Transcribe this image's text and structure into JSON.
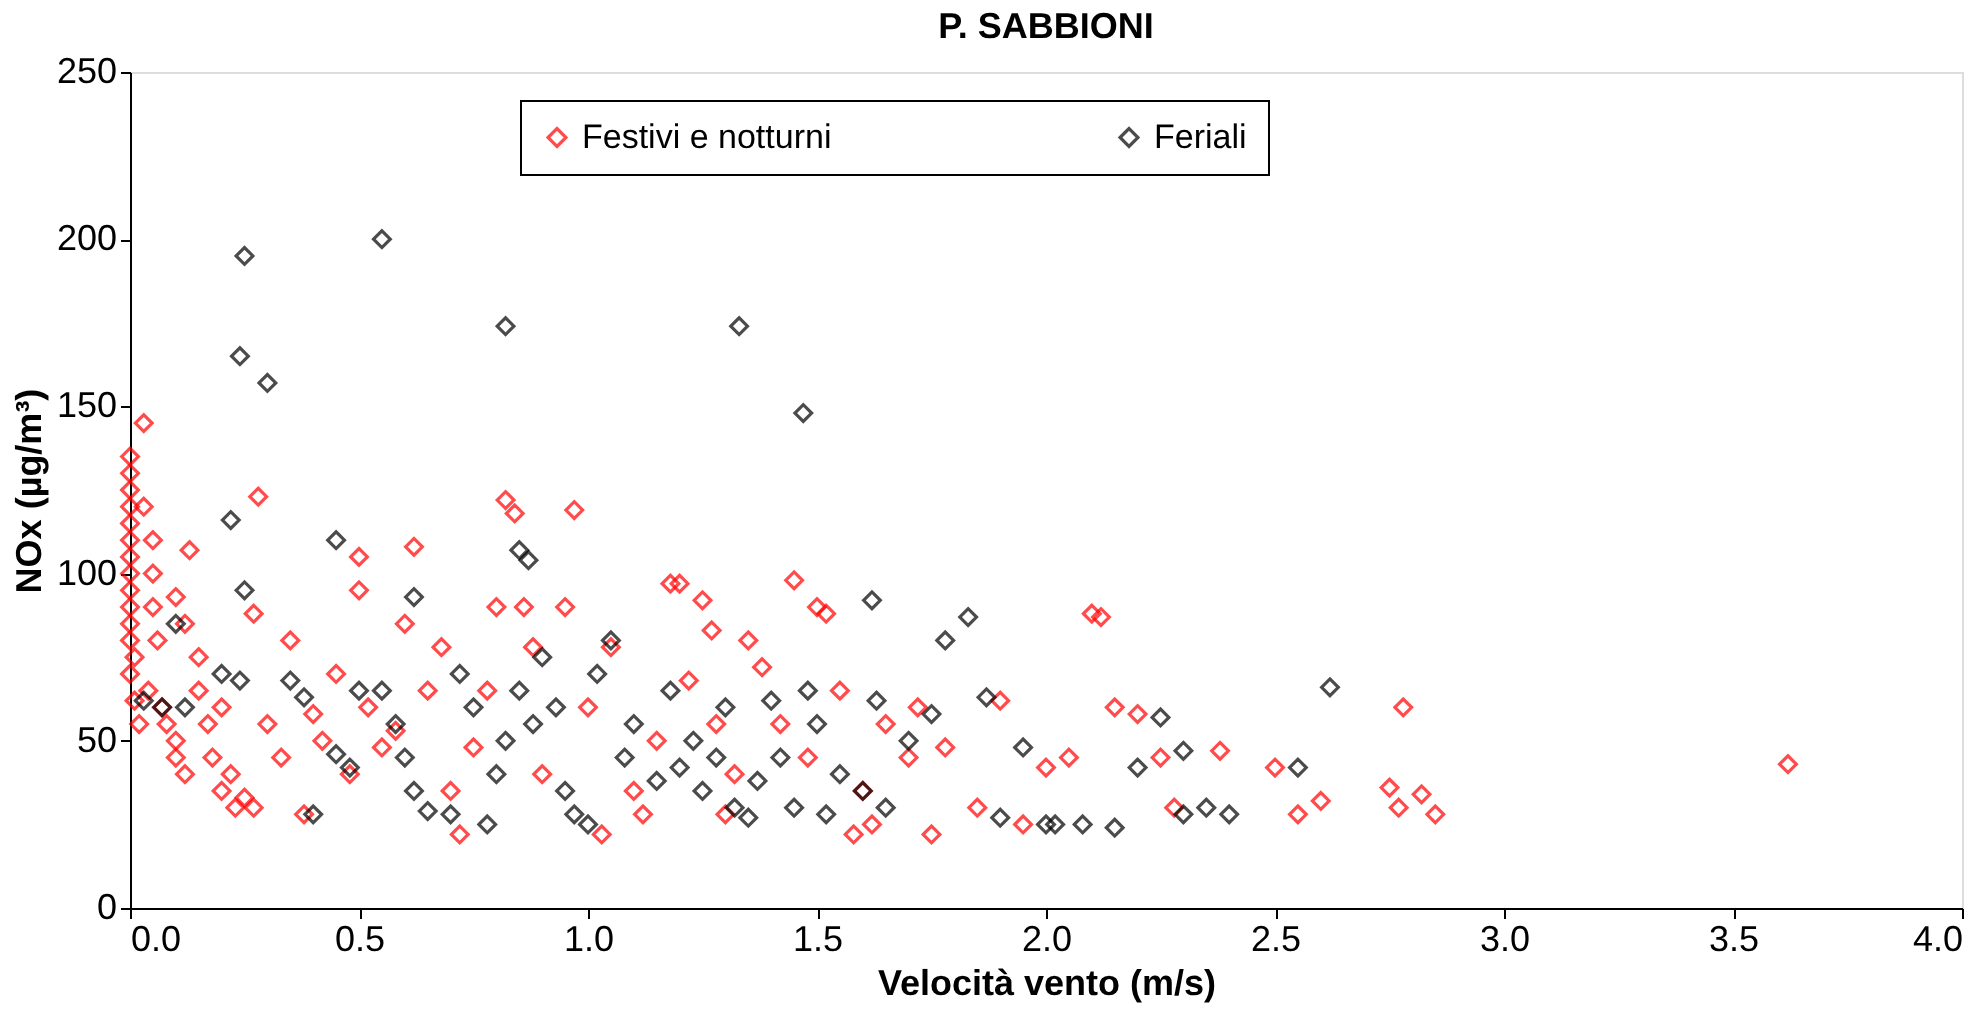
{
  "chart_data": {
    "type": "scatter",
    "title": "P. SABBIONI",
    "xlabel": "Velocità vento (m/s)",
    "ylabel": "NOx (µg/m³)",
    "xlim": [
      0,
      4
    ],
    "xticks": [
      {
        "value": 0,
        "label": "0.0"
      },
      {
        "value": 0.5,
        "label": "0.5"
      },
      {
        "value": 1,
        "label": "1.0"
      },
      {
        "value": 1.5,
        "label": "1.5"
      },
      {
        "value": 2,
        "label": "2.0"
      },
      {
        "value": 2.5,
        "label": "2.5"
      },
      {
        "value": 3,
        "label": "3.0"
      },
      {
        "value": 3.5,
        "label": "3.5"
      },
      {
        "value": 4,
        "label": "4.0"
      }
    ],
    "ylim": [
      0,
      250
    ],
    "yticks": [
      0,
      50,
      100,
      150,
      200,
      250
    ],
    "grid": false,
    "legend": "top",
    "marker": "diamond",
    "series": [
      {
        "name": "Festivi e notturni",
        "color": "#ff0000",
        "x": [
          0,
          0,
          0,
          0,
          0,
          0,
          0,
          0,
          0,
          0,
          0,
          0,
          0.01,
          0,
          0.01,
          0.02,
          0.03,
          0.03,
          0.05,
          0.05,
          0.05,
          0.06,
          0.04,
          0.07,
          0.08,
          0.1,
          0.1,
          0.12,
          0.1,
          0.12,
          0.13,
          0.15,
          0.15,
          0.17,
          0.18,
          0.2,
          0.2,
          0.22,
          0.23,
          0.25,
          0.27,
          0.28,
          0.27,
          0.3,
          0.33,
          0.35,
          0.38,
          0.4,
          0.42,
          0.45,
          0.48,
          0.5,
          0.5,
          0.52,
          0.55,
          0.58,
          0.6,
          0.62,
          0.65,
          0.68,
          0.7,
          0.72,
          0.75,
          0.78,
          0.8,
          0.82,
          0.84,
          0.86,
          0.88,
          0.9,
          0.95,
          0.97,
          1.0,
          1.03,
          1.05,
          1.1,
          1.12,
          1.15,
          1.18,
          1.2,
          1.22,
          1.25,
          1.27,
          1.28,
          1.3,
          1.32,
          1.35,
          1.38,
          1.42,
          1.45,
          1.48,
          1.5,
          1.52,
          1.55,
          1.58,
          1.6,
          1.62,
          1.65,
          1.7,
          1.72,
          1.75,
          1.78,
          1.85,
          1.9,
          1.95,
          2.0,
          2.05,
          2.1,
          2.12,
          2.15,
          2.2,
          2.25,
          2.28,
          2.38,
          2.5,
          2.55,
          2.6,
          2.75,
          2.77,
          2.78,
          2.82,
          2.85,
          3.62
        ],
        "values": [
          135,
          130,
          125,
          120,
          115,
          110,
          105,
          100,
          95,
          90,
          85,
          80,
          75,
          70,
          62,
          55,
          145,
          120,
          110,
          100,
          90,
          80,
          65,
          60,
          55,
          50,
          45,
          40,
          93,
          85,
          107,
          75,
          65,
          55,
          45,
          35,
          60,
          40,
          30,
          33,
          30,
          123,
          88,
          55,
          45,
          80,
          28,
          58,
          50,
          70,
          40,
          105,
          95,
          60,
          48,
          53,
          85,
          108,
          65,
          78,
          35,
          22,
          48,
          65,
          90,
          122,
          118,
          90,
          78,
          40,
          90,
          119,
          60,
          22,
          78,
          35,
          28,
          50,
          97,
          97,
          68,
          92,
          83,
          55,
          28,
          40,
          80,
          72,
          55,
          98,
          45,
          90,
          88,
          65,
          22,
          35,
          25,
          55,
          45,
          60,
          22,
          48,
          30,
          62,
          25,
          42,
          45,
          88,
          87,
          60,
          58,
          45,
          30,
          47,
          42,
          28,
          32,
          36,
          30,
          60,
          34,
          28,
          43
        ]
      },
      {
        "name": "Feriali",
        "color": "#000000",
        "x": [
          0.25,
          0.55,
          0.24,
          0.3,
          0.82,
          1.33,
          1.47,
          0.22,
          0.45,
          0.25,
          0.62,
          0.85,
          0.87,
          0.03,
          0.07,
          0.1,
          0.12,
          0.2,
          0.24,
          0.35,
          0.38,
          0.4,
          0.45,
          0.48,
          0.5,
          0.55,
          0.58,
          0.6,
          0.62,
          0.65,
          0.7,
          0.72,
          0.75,
          0.78,
          0.8,
          0.82,
          0.85,
          0.88,
          0.9,
          0.93,
          0.95,
          0.97,
          1.0,
          1.02,
          1.05,
          1.08,
          1.1,
          1.15,
          1.18,
          1.2,
          1.23,
          1.25,
          1.28,
          1.3,
          1.32,
          1.35,
          1.37,
          1.4,
          1.42,
          1.45,
          1.48,
          1.5,
          1.52,
          1.55,
          1.6,
          1.62,
          1.63,
          1.65,
          1.7,
          1.75,
          1.78,
          1.83,
          1.87,
          1.9,
          1.95,
          2.0,
          2.02,
          2.08,
          2.15,
          2.2,
          2.25,
          2.3,
          2.3,
          2.35,
          2.4,
          2.55,
          2.62
        ],
        "values": [
          195,
          200,
          165,
          157,
          174,
          174,
          148,
          116,
          110,
          95,
          93,
          107,
          104,
          62,
          60,
          85,
          60,
          70,
          68,
          68,
          63,
          28,
          46,
          42,
          65,
          65,
          55,
          45,
          35,
          29,
          28,
          70,
          60,
          25,
          40,
          50,
          65,
          55,
          75,
          60,
          35,
          28,
          25,
          70,
          80,
          45,
          55,
          38,
          65,
          42,
          50,
          35,
          45,
          60,
          30,
          27,
          38,
          62,
          45,
          30,
          65,
          55,
          28,
          40,
          35,
          92,
          62,
          30,
          50,
          58,
          80,
          87,
          63,
          27,
          48,
          25,
          25,
          25,
          24,
          42,
          57,
          47,
          28,
          30,
          28,
          42,
          66
        ]
      }
    ]
  }
}
